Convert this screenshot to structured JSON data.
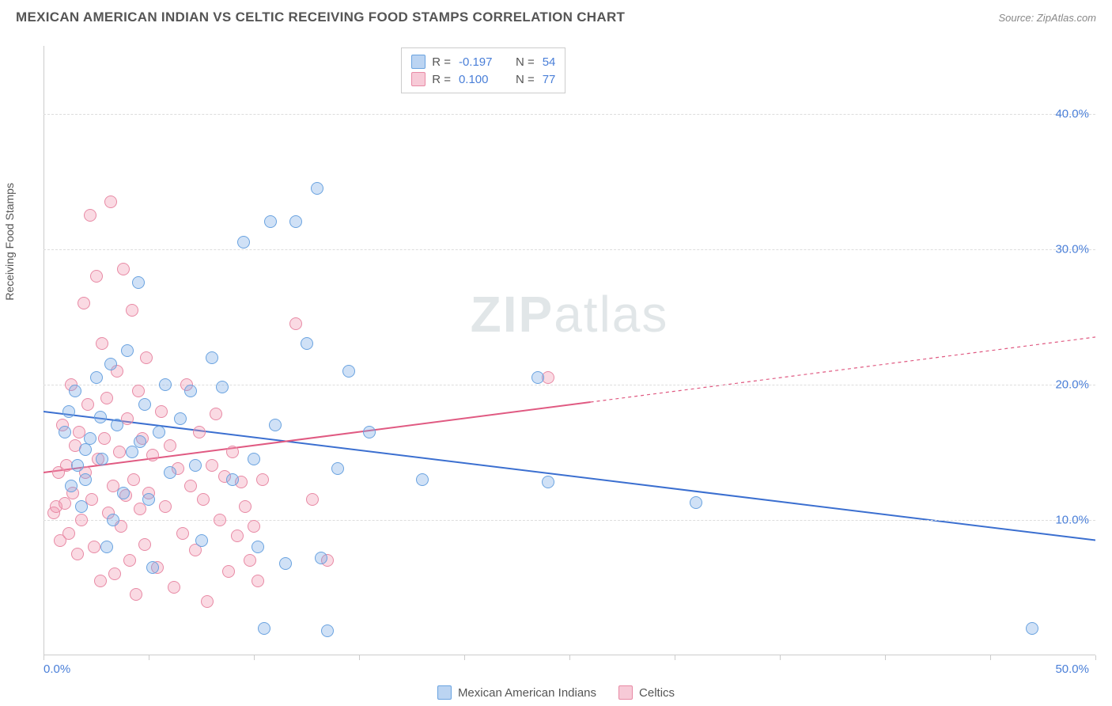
{
  "title": "MEXICAN AMERICAN INDIAN VS CELTIC RECEIVING FOOD STAMPS CORRELATION CHART",
  "source": "Source: ZipAtlas.com",
  "y_axis_label": "Receiving Food Stamps",
  "watermark": {
    "bold": "ZIP",
    "rest": "atlas"
  },
  "chart": {
    "type": "scatter",
    "xlim": [
      0,
      50
    ],
    "ylim": [
      0,
      45
    ],
    "x_start_label": "0.0%",
    "x_end_label": "50.0%",
    "y_ticks": [
      10,
      20,
      30,
      40
    ],
    "y_tick_labels": [
      "10.0%",
      "20.0%",
      "30.0%",
      "40.0%"
    ],
    "x_tick_positions": [
      0,
      5,
      10,
      15,
      20,
      25,
      30,
      35,
      40,
      45,
      50
    ],
    "grid_color": "#dddddd",
    "background_color": "#ffffff",
    "marker_radius": 8,
    "series": {
      "blue": {
        "label": "Mexican American Indians",
        "fill": "rgba(120,170,230,0.35)",
        "stroke": "#6aa3e0",
        "trend": {
          "x1": 0,
          "y1": 18.0,
          "x2": 50,
          "y2": 8.5,
          "color": "#3b6fd0",
          "width": 2,
          "dash_after_x": null
        },
        "R": "-0.197",
        "N": "54",
        "points": [
          [
            1.0,
            16.5
          ],
          [
            1.2,
            18.0
          ],
          [
            1.5,
            19.5
          ],
          [
            1.8,
            11.0
          ],
          [
            2.0,
            13.0
          ],
          [
            2.2,
            16.0
          ],
          [
            2.5,
            20.5
          ],
          [
            2.8,
            14.5
          ],
          [
            3.0,
            8.0
          ],
          [
            3.2,
            21.5
          ],
          [
            3.5,
            17.0
          ],
          [
            3.8,
            12.0
          ],
          [
            4.0,
            22.5
          ],
          [
            4.2,
            15.0
          ],
          [
            4.5,
            27.5
          ],
          [
            4.8,
            18.5
          ],
          [
            5.0,
            11.5
          ],
          [
            5.2,
            6.5
          ],
          [
            5.5,
            16.5
          ],
          [
            5.8,
            20.0
          ],
          [
            6.0,
            13.5
          ],
          [
            6.5,
            17.5
          ],
          [
            7.0,
            19.5
          ],
          [
            7.2,
            14.0
          ],
          [
            7.5,
            8.5
          ],
          [
            8.0,
            22.0
          ],
          [
            8.5,
            19.8
          ],
          [
            9.0,
            13.0
          ],
          [
            9.5,
            30.5
          ],
          [
            10.0,
            14.5
          ],
          [
            10.2,
            8.0
          ],
          [
            10.5,
            2.0
          ],
          [
            10.8,
            32.0
          ],
          [
            11.0,
            17.0
          ],
          [
            11.5,
            6.8
          ],
          [
            12.0,
            32.0
          ],
          [
            12.5,
            23.0
          ],
          [
            13.0,
            34.5
          ],
          [
            13.2,
            7.2
          ],
          [
            13.5,
            1.8
          ],
          [
            14.0,
            13.8
          ],
          [
            14.5,
            21.0
          ],
          [
            15.5,
            16.5
          ],
          [
            18.0,
            13.0
          ],
          [
            23.5,
            20.5
          ],
          [
            24.0,
            12.8
          ],
          [
            31.0,
            11.3
          ],
          [
            47.0,
            2.0
          ],
          [
            3.3,
            10.0
          ],
          [
            2.0,
            15.2
          ],
          [
            1.6,
            14.0
          ],
          [
            2.7,
            17.6
          ],
          [
            1.3,
            12.5
          ],
          [
            4.6,
            15.8
          ]
        ]
      },
      "pink": {
        "label": "Celtics",
        "fill": "rgba(240,150,175,0.35)",
        "stroke": "#e88aa5",
        "trend": {
          "x1": 0,
          "y1": 13.5,
          "x2": 50,
          "y2": 23.5,
          "color": "#e05a82",
          "width": 2,
          "dash_after_x": 26
        },
        "R": "0.100",
        "N": "77",
        "points": [
          [
            0.5,
            10.5
          ],
          [
            0.6,
            11.0
          ],
          [
            0.7,
            13.5
          ],
          [
            0.8,
            8.5
          ],
          [
            0.9,
            17.0
          ],
          [
            1.0,
            11.2
          ],
          [
            1.1,
            14.0
          ],
          [
            1.2,
            9.0
          ],
          [
            1.3,
            20.0
          ],
          [
            1.4,
            12.0
          ],
          [
            1.5,
            15.5
          ],
          [
            1.6,
            7.5
          ],
          [
            1.7,
            16.5
          ],
          [
            1.8,
            10.0
          ],
          [
            1.9,
            26.0
          ],
          [
            2.0,
            13.5
          ],
          [
            2.1,
            18.5
          ],
          [
            2.2,
            32.5
          ],
          [
            2.3,
            11.5
          ],
          [
            2.4,
            8.0
          ],
          [
            2.5,
            28.0
          ],
          [
            2.6,
            14.5
          ],
          [
            2.7,
            5.5
          ],
          [
            2.8,
            23.0
          ],
          [
            2.9,
            16.0
          ],
          [
            3.0,
            19.0
          ],
          [
            3.1,
            10.5
          ],
          [
            3.2,
            33.5
          ],
          [
            3.3,
            12.5
          ],
          [
            3.4,
            6.0
          ],
          [
            3.5,
            21.0
          ],
          [
            3.6,
            15.0
          ],
          [
            3.7,
            9.5
          ],
          [
            3.8,
            28.5
          ],
          [
            3.9,
            11.8
          ],
          [
            4.0,
            17.5
          ],
          [
            4.1,
            7.0
          ],
          [
            4.2,
            25.5
          ],
          [
            4.3,
            13.0
          ],
          [
            4.4,
            4.5
          ],
          [
            4.5,
            19.5
          ],
          [
            4.6,
            10.8
          ],
          [
            4.7,
            16.0
          ],
          [
            4.8,
            8.2
          ],
          [
            4.9,
            22.0
          ],
          [
            5.0,
            12.0
          ],
          [
            5.2,
            14.8
          ],
          [
            5.4,
            6.5
          ],
          [
            5.6,
            18.0
          ],
          [
            5.8,
            11.0
          ],
          [
            6.0,
            15.5
          ],
          [
            6.2,
            5.0
          ],
          [
            6.4,
            13.8
          ],
          [
            6.6,
            9.0
          ],
          [
            6.8,
            20.0
          ],
          [
            7.0,
            12.5
          ],
          [
            7.2,
            7.8
          ],
          [
            7.4,
            16.5
          ],
          [
            7.6,
            11.5
          ],
          [
            7.8,
            4.0
          ],
          [
            8.0,
            14.0
          ],
          [
            8.2,
            17.8
          ],
          [
            8.4,
            10.0
          ],
          [
            8.6,
            13.2
          ],
          [
            8.8,
            6.2
          ],
          [
            9.0,
            15.0
          ],
          [
            9.2,
            8.8
          ],
          [
            9.4,
            12.8
          ],
          [
            9.6,
            11.0
          ],
          [
            9.8,
            7.0
          ],
          [
            10.0,
            9.5
          ],
          [
            10.2,
            5.5
          ],
          [
            10.4,
            13.0
          ],
          [
            12.0,
            24.5
          ],
          [
            13.5,
            7.0
          ],
          [
            12.8,
            11.5
          ],
          [
            24.0,
            20.5
          ]
        ]
      }
    }
  },
  "stats_box": {
    "rows": [
      {
        "swatch_fill": "rgba(120,170,230,0.5)",
        "swatch_stroke": "#6aa3e0",
        "r_label": "R =",
        "r_val": "-0.197",
        "n_label": "N =",
        "n_val": "54"
      },
      {
        "swatch_fill": "rgba(240,150,175,0.5)",
        "swatch_stroke": "#e88aa5",
        "r_label": "R =",
        "r_val": "0.100",
        "n_label": "N =",
        "n_val": "77"
      }
    ]
  },
  "bottom_legend": [
    {
      "swatch_fill": "rgba(120,170,230,0.5)",
      "swatch_stroke": "#6aa3e0",
      "label": "Mexican American Indians"
    },
    {
      "swatch_fill": "rgba(240,150,175,0.5)",
      "swatch_stroke": "#e88aa5",
      "label": "Celtics"
    }
  ]
}
